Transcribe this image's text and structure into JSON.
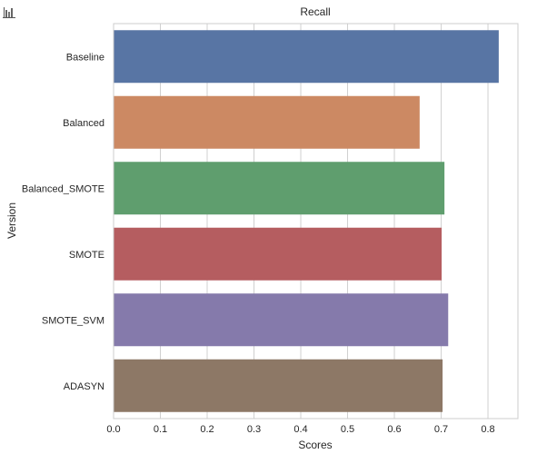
{
  "toolbar": {
    "icon": "bar-chart-icon"
  },
  "chart_data": {
    "type": "bar",
    "orientation": "horizontal",
    "title": "Recall",
    "xlabel": "Scores",
    "ylabel": "Version",
    "categories": [
      "Baseline",
      "Balanced",
      "Balanced_SMOTE",
      "SMOTE",
      "SMOTE_SVM",
      "ADASYN"
    ],
    "values": [
      0.823,
      0.654,
      0.707,
      0.701,
      0.715,
      0.703
    ],
    "colors": [
      "#5875a4",
      "#cc8963",
      "#5f9e6e",
      "#b55d60",
      "#857aab",
      "#8d7866"
    ],
    "xlim": [
      0,
      0.864
    ],
    "xticks": [
      "0.0",
      "0.1",
      "0.2",
      "0.3",
      "0.4",
      "0.5",
      "0.6",
      "0.7",
      "0.8"
    ],
    "grid": "vertical"
  }
}
